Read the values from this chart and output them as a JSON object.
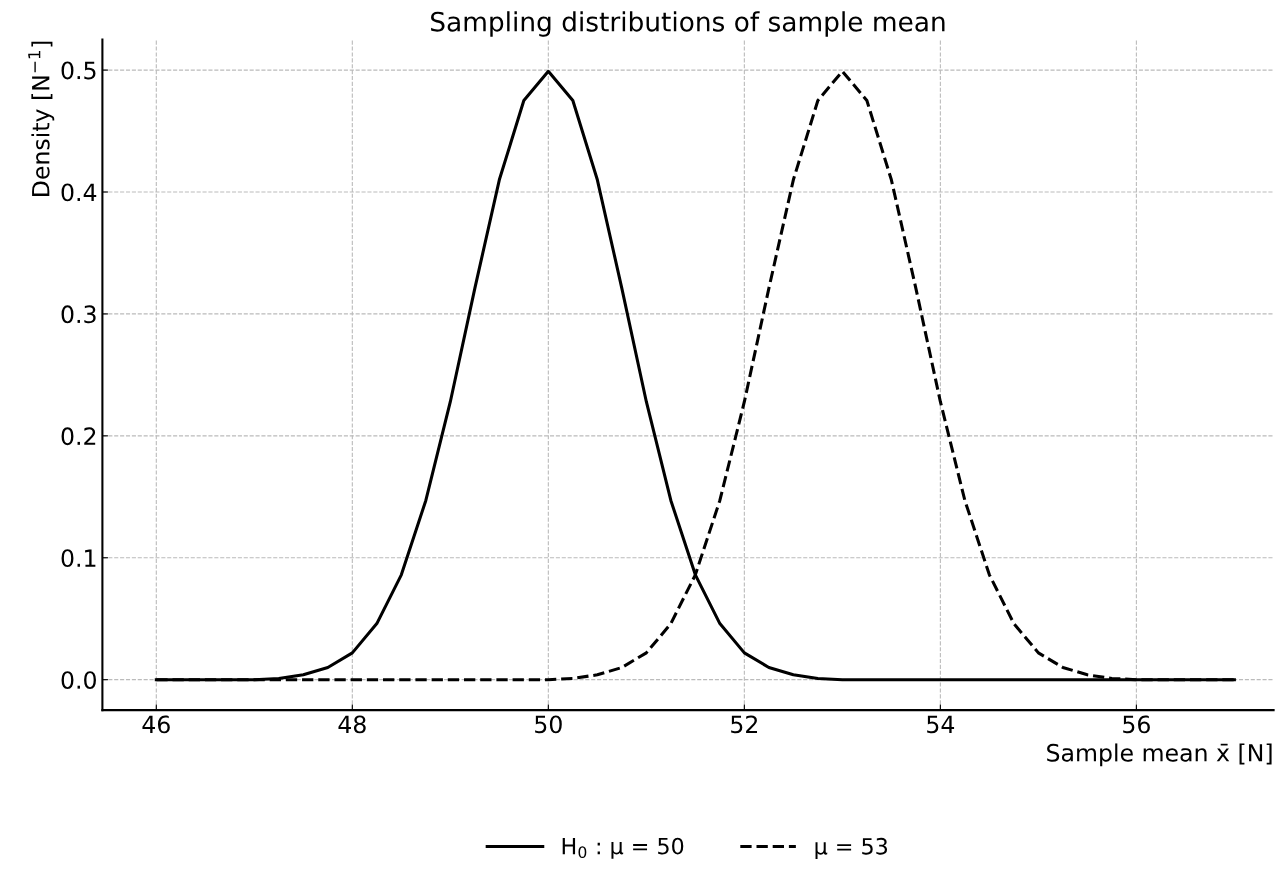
{
  "chart_data": {
    "type": "line",
    "title": "Sampling distributions of sample mean",
    "xlabel": "Sample mean x̄ [N]",
    "ylabel": "Density [N$^{−1}$]",
    "x": [
      46,
      46.25,
      46.5,
      46.75,
      47,
      47.25,
      47.5,
      47.75,
      48,
      48.25,
      48.5,
      48.75,
      49,
      49.25,
      49.5,
      49.75,
      50,
      50.25,
      50.5,
      50.75,
      51,
      51.25,
      51.5,
      51.75,
      52,
      52.25,
      52.5,
      52.75,
      53,
      53.25,
      53.5,
      53.75,
      54,
      54.25,
      54.5,
      54.75,
      55,
      55.25,
      55.5,
      55.75,
      56,
      56.25,
      56.5,
      56.75,
      57
    ],
    "series": [
      {
        "name": "H$_{0}$ : μ = 50",
        "color": "#000000",
        "line_style": "solid",
        "values": [
          0,
          0,
          0,
          0,
          0,
          0.001,
          0.004,
          0.01,
          0.022,
          0.046,
          0.086,
          0.147,
          0.228,
          0.321,
          0.41,
          0.475,
          0.499,
          0.475,
          0.41,
          0.321,
          0.228,
          0.147,
          0.086,
          0.046,
          0.022,
          0.01,
          0.004,
          0.001,
          0,
          0,
          0,
          0,
          0,
          0,
          0,
          0,
          0,
          0,
          0,
          0,
          0,
          0,
          0,
          0,
          0
        ]
      },
      {
        "name": "μ = 53",
        "color": "#000000",
        "line_style": "dashed",
        "values": [
          0,
          0,
          0,
          0,
          0,
          0,
          0,
          0,
          0,
          0,
          0,
          0,
          0,
          0,
          0,
          0,
          0,
          0.001,
          0.004,
          0.01,
          0.022,
          0.046,
          0.086,
          0.147,
          0.228,
          0.321,
          0.41,
          0.475,
          0.499,
          0.475,
          0.41,
          0.321,
          0.228,
          0.147,
          0.086,
          0.046,
          0.022,
          0.01,
          0.004,
          0.001,
          0,
          0,
          0,
          0,
          0
        ]
      }
    ],
    "xlim": [
      45.45,
      57.4
    ],
    "ylim": [
      -0.025,
      0.525
    ],
    "xticks": [
      46,
      48,
      50,
      52,
      54,
      56
    ],
    "yticks": [
      {
        "value": 0,
        "label": "0.0"
      },
      0.1,
      0.2,
      0.3,
      0.4,
      0.5
    ],
    "grid": true,
    "legend": "bottom"
  }
}
